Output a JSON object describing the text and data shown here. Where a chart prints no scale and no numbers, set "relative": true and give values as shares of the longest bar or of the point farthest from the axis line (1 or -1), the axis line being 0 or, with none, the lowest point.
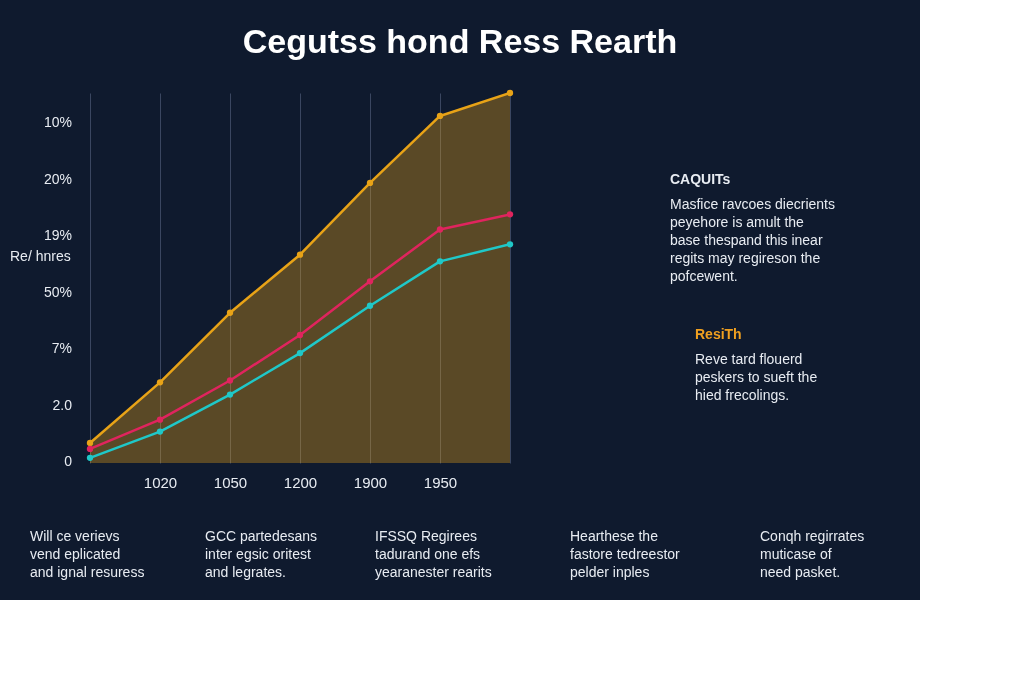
{
  "chart_data": {
    "type": "line",
    "title": "Cegutss hond Ress Rearth",
    "ylabel": "Re/ hnres",
    "categories": [
      null,
      "1020",
      "1050",
      "1200",
      "1900",
      "1950",
      null
    ],
    "relative": true,
    "series": [
      {
        "type": "area",
        "color": "#e8a317",
        "values": [
          0.054,
          0.218,
          0.406,
          0.563,
          0.757,
          0.938,
          1
        ]
      },
      {
        "color": "#e0245e",
        "values": [
          0.038,
          0.117,
          0.223,
          0.346,
          0.491,
          0.631,
          0.672
        ]
      },
      {
        "color": "#1fc8c8",
        "values": [
          0.014,
          0.085,
          0.185,
          0.297,
          0.425,
          0.545,
          0.591
        ]
      }
    ],
    "marker": "circle",
    "grid": "x",
    "annotations": [
      "CAQUITs",
      "Masfice ravcoes diecrients\npeyehore is amult the\nbase thespand this inear\nregits may regireson the\npofcewent.",
      "ResiTh",
      "Reve tard flouerd\npeskers to sueft the\nhied frecolings.",
      "Will ce verievs\nvend eplicated\nand ignal resuress",
      "GCC partedesans\ninter egsic oritest\nand legrates.",
      "IFSSQ Regirees\ntadurand one efs\nyearanester rearits",
      "Hearthese the\nfastore tedreestor\npelder inples",
      "Conqh regirrates\nmuticase of\nneed pasket.",
      "10%",
      "20%",
      "19%",
      "50%",
      "7%",
      "2.0",
      "0"
    ]
  }
}
